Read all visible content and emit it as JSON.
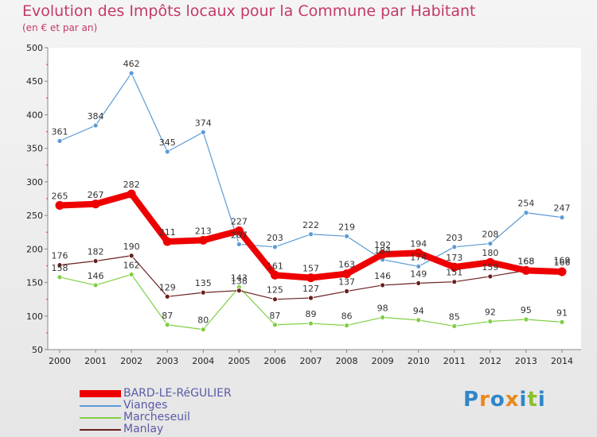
{
  "header": {
    "title": "Evolution des Impôts locaux pour la Commune par Habitant",
    "subtitle": "(en € et par an)"
  },
  "logo": {
    "text": "Proxiti",
    "colors": [
      "#2f86c8",
      "#e8891c",
      "#2f86c8",
      "#e8891c",
      "#2f86c8",
      "#8bbf2a",
      "#2f86c8"
    ]
  },
  "chart_data": {
    "type": "line",
    "x": [
      "2000",
      "2001",
      "2002",
      "2003",
      "2004",
      "2005",
      "2006",
      "2007",
      "2008",
      "2009",
      "2010",
      "2011",
      "2012",
      "2013",
      "2014"
    ],
    "ylim": [
      50,
      500
    ],
    "yticks": [
      50,
      100,
      150,
      200,
      250,
      300,
      350,
      400,
      450,
      500
    ],
    "grid": false,
    "legend_position": "bottom-left",
    "series": [
      {
        "name": "BARD-LE-RéGULIER",
        "color": "#ee0000",
        "values": [
          265,
          267,
          282,
          211,
          213,
          227,
          161,
          157,
          163,
          192,
          194,
          173,
          180,
          168,
          166
        ]
      },
      {
        "name": "Vianges",
        "color": "#5b9bd5",
        "values": [
          361,
          384,
          462,
          345,
          374,
          207,
          203,
          222,
          219,
          184,
          174,
          203,
          208,
          254,
          247
        ]
      },
      {
        "name": "Marcheseuil",
        "color": "#7fcf43",
        "values": [
          158,
          146,
          162,
          87,
          80,
          143,
          87,
          89,
          86,
          98,
          94,
          85,
          92,
          95,
          91
        ]
      },
      {
        "name": "Manlay",
        "color": "#6b1f1f",
        "values": [
          176,
          182,
          190,
          129,
          135,
          138,
          125,
          127,
          137,
          146,
          149,
          151,
          159,
          168,
          169
        ]
      }
    ]
  }
}
